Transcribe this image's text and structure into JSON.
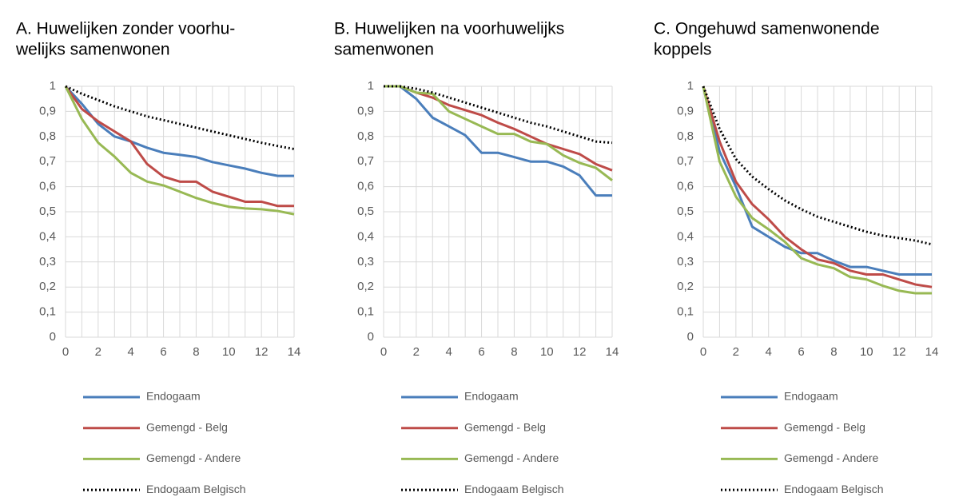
{
  "chart_data": [
    {
      "type": "line",
      "title": [
        "A. Huwelijken zonder voorhu-",
        "welijks samenwonen"
      ],
      "x": [
        0,
        1,
        2,
        3,
        4,
        5,
        6,
        7,
        8,
        9,
        10,
        11,
        12,
        13,
        14
      ],
      "xlim": [
        0,
        14
      ],
      "xticks": [
        0,
        2,
        4,
        6,
        8,
        10,
        12,
        14
      ],
      "ylim": [
        0,
        1
      ],
      "yticks": [
        0,
        {
          "value": 0.1,
          "label": "0,1"
        },
        {
          "value": 0.2,
          "label": "0,2"
        },
        {
          "value": 0.3,
          "label": "0,3"
        },
        {
          "value": 0.4,
          "label": "0,4"
        },
        {
          "value": 0.5,
          "label": "0,5"
        },
        {
          "value": 0.6,
          "label": "0,6"
        },
        {
          "value": 0.7,
          "label": "0,7"
        },
        {
          "value": 0.8,
          "label": "0,8"
        },
        {
          "value": 0.9,
          "label": "0,9"
        },
        1
      ],
      "grid": true,
      "series": [
        {
          "name": "Endogaam",
          "color": "#4a7ebb",
          "values": [
            1,
            0.93,
            0.85,
            0.8,
            0.78,
            0.755,
            0.735,
            0.727,
            0.718,
            0.698,
            0.685,
            0.672,
            0.655,
            0.643,
            0.643
          ]
        },
        {
          "name": "Gemengd - Belg",
          "color": "#be4b48",
          "values": [
            1,
            0.91,
            0.86,
            0.82,
            0.78,
            0.69,
            0.64,
            0.62,
            0.62,
            0.58,
            0.56,
            0.54,
            0.54,
            0.523,
            0.523
          ]
        },
        {
          "name": "Gemengd - Andere",
          "color": "#98b954",
          "values": [
            1,
            0.87,
            0.775,
            0.72,
            0.655,
            0.62,
            0.605,
            0.58,
            0.555,
            0.535,
            0.52,
            0.513,
            0.51,
            0.503,
            0.49
          ]
        },
        {
          "name": "Endogaam Belgisch",
          "color": "#000000",
          "dash": "dotted",
          "values": [
            1,
            0.97,
            0.945,
            0.92,
            0.9,
            0.88,
            0.865,
            0.85,
            0.835,
            0.82,
            0.805,
            0.79,
            0.775,
            0.762,
            0.75
          ]
        }
      ]
    },
    {
      "type": "line",
      "title": [
        "B. Huwelijken na voorhuwelijks",
        "samenwonen"
      ],
      "x": [
        0,
        1,
        2,
        3,
        4,
        5,
        6,
        7,
        8,
        9,
        10,
        11,
        12,
        13,
        14
      ],
      "xlim": [
        0,
        14
      ],
      "xticks": [
        0,
        2,
        4,
        6,
        8,
        10,
        12,
        14
      ],
      "ylim": [
        0,
        1
      ],
      "yticks": [
        0,
        {
          "value": 0.1,
          "label": "0,1"
        },
        {
          "value": 0.2,
          "label": "0,2"
        },
        {
          "value": 0.3,
          "label": "0,3"
        },
        {
          "value": 0.4,
          "label": "0,4"
        },
        {
          "value": 0.5,
          "label": "0,5"
        },
        {
          "value": 0.6,
          "label": "0,6"
        },
        {
          "value": 0.7,
          "label": "0,7"
        },
        {
          "value": 0.8,
          "label": "0,8"
        },
        {
          "value": 0.9,
          "label": "0,9"
        },
        1
      ],
      "grid": true,
      "series": [
        {
          "name": "Endogaam",
          "color": "#4a7ebb",
          "values": [
            1,
            1,
            0.95,
            0.875,
            0.84,
            0.805,
            0.735,
            0.735,
            0.718,
            0.7,
            0.7,
            0.68,
            0.645,
            0.565,
            0.565
          ]
        },
        {
          "name": "Gemengd - Belg",
          "color": "#be4b48",
          "values": [
            1,
            1,
            0.975,
            0.955,
            0.925,
            0.905,
            0.885,
            0.855,
            0.83,
            0.8,
            0.77,
            0.75,
            0.73,
            0.69,
            0.665
          ]
        },
        {
          "name": "Gemengd - Andere",
          "color": "#98b954",
          "values": [
            1,
            1,
            0.975,
            0.97,
            0.9,
            0.87,
            0.84,
            0.81,
            0.81,
            0.78,
            0.77,
            0.725,
            0.695,
            0.675,
            0.625
          ]
        },
        {
          "name": "Endogaam Belgisch",
          "color": "#000000",
          "dash": "dotted",
          "values": [
            1,
            1,
            0.99,
            0.975,
            0.955,
            0.935,
            0.915,
            0.895,
            0.875,
            0.855,
            0.84,
            0.82,
            0.8,
            0.78,
            0.775
          ]
        }
      ]
    },
    {
      "type": "line",
      "title": [
        "C. Ongehuwd samenwonende",
        "koppels"
      ],
      "x": [
        0,
        1,
        2,
        3,
        4,
        5,
        6,
        7,
        8,
        9,
        10,
        11,
        12,
        13,
        14
      ],
      "xlim": [
        0,
        14
      ],
      "xticks": [
        0,
        2,
        4,
        6,
        8,
        10,
        12,
        14
      ],
      "ylim": [
        0,
        1
      ],
      "yticks": [
        0,
        {
          "value": 0.1,
          "label": "0,1"
        },
        {
          "value": 0.2,
          "label": "0,2"
        },
        {
          "value": 0.3,
          "label": "0,3"
        },
        {
          "value": 0.4,
          "label": "0,4"
        },
        {
          "value": 0.5,
          "label": "0,5"
        },
        {
          "value": 0.6,
          "label": "0,6"
        },
        {
          "value": 0.7,
          "label": "0,7"
        },
        {
          "value": 0.8,
          "label": "0,8"
        },
        {
          "value": 0.9,
          "label": "0,9"
        },
        1
      ],
      "grid": true,
      "series": [
        {
          "name": "Endogaam",
          "color": "#4a7ebb",
          "values": [
            1,
            0.74,
            0.6,
            0.44,
            0.4,
            0.36,
            0.335,
            0.335,
            0.305,
            0.28,
            0.28,
            0.265,
            0.25,
            0.25,
            0.25
          ]
        },
        {
          "name": "Gemengd - Belg",
          "color": "#be4b48",
          "values": [
            1,
            0.78,
            0.62,
            0.53,
            0.47,
            0.4,
            0.35,
            0.31,
            0.295,
            0.265,
            0.25,
            0.25,
            0.23,
            0.21,
            0.2
          ]
        },
        {
          "name": "Gemengd - Andere",
          "color": "#98b954",
          "values": [
            1,
            0.7,
            0.56,
            0.475,
            0.43,
            0.38,
            0.315,
            0.29,
            0.275,
            0.24,
            0.23,
            0.205,
            0.185,
            0.175,
            0.175
          ]
        },
        {
          "name": "Endogaam Belgisch",
          "color": "#000000",
          "dash": "dotted",
          "values": [
            1,
            0.83,
            0.71,
            0.64,
            0.59,
            0.545,
            0.51,
            0.48,
            0.46,
            0.44,
            0.42,
            0.405,
            0.395,
            0.385,
            0.37
          ]
        }
      ]
    }
  ]
}
